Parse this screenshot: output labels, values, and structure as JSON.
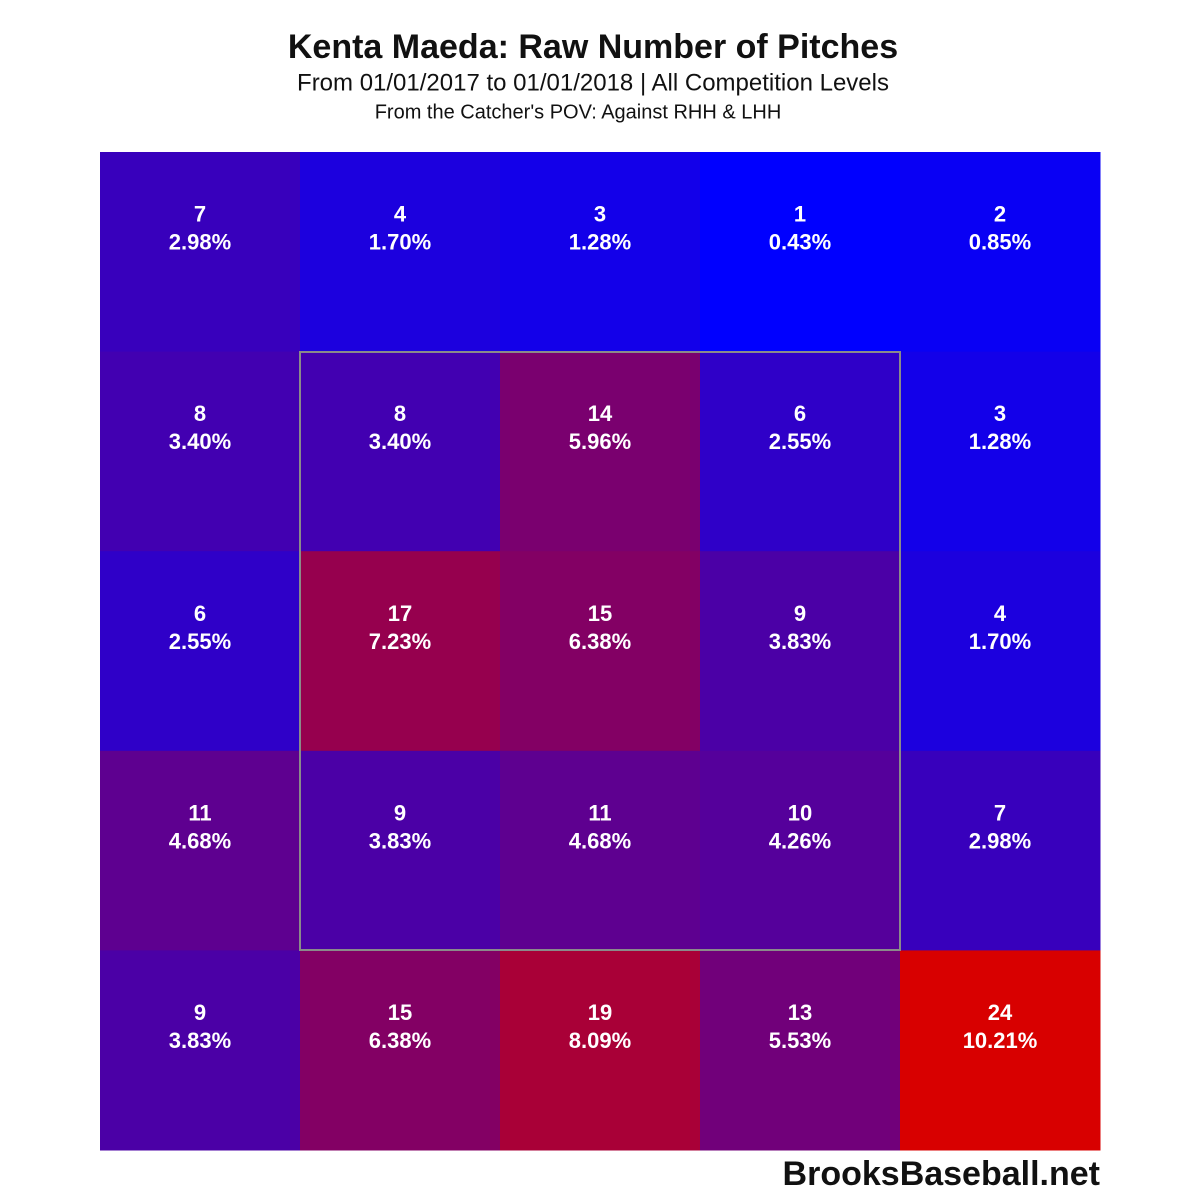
{
  "chart_data": {
    "type": "heatmap",
    "title": "Kenta Maeda: Raw Number of Pitches",
    "subtitle": "From 01/01/2017 to 01/01/2018 | All Competition Levels",
    "note": "From the Catcher's POV:   Against RHH & LHH",
    "source": "BrooksBaseball.net",
    "color_low": "#0000ff",
    "color_high": "#d80000",
    "values": [
      [
        7,
        4,
        3,
        1,
        2
      ],
      [
        8,
        8,
        14,
        6,
        3
      ],
      [
        6,
        17,
        15,
        9,
        4
      ],
      [
        11,
        9,
        11,
        10,
        7
      ],
      [
        9,
        15,
        19,
        13,
        24
      ]
    ],
    "percents": [
      [
        2.98,
        1.7,
        1.28,
        0.43,
        0.85
      ],
      [
        3.4,
        3.4,
        5.96,
        2.55,
        1.28
      ],
      [
        2.55,
        7.23,
        6.38,
        3.83,
        1.7
      ],
      [
        4.68,
        3.83,
        4.68,
        4.26,
        2.98
      ],
      [
        3.83,
        6.38,
        8.09,
        5.53,
        10.21
      ]
    ],
    "percent_labels": [
      [
        "2.98%",
        "1.70%",
        "1.28%",
        "0.43%",
        "0.85%"
      ],
      [
        "3.40%",
        "3.40%",
        "5.96%",
        "2.55%",
        "1.28%"
      ],
      [
        "2.55%",
        "7.23%",
        "6.38%",
        "3.83%",
        "1.70%"
      ],
      [
        "4.68%",
        "3.83%",
        "4.68%",
        "4.26%",
        "2.98%"
      ],
      [
        "3.83%",
        "6.38%",
        "8.09%",
        "5.53%",
        "10.21%"
      ]
    ]
  }
}
